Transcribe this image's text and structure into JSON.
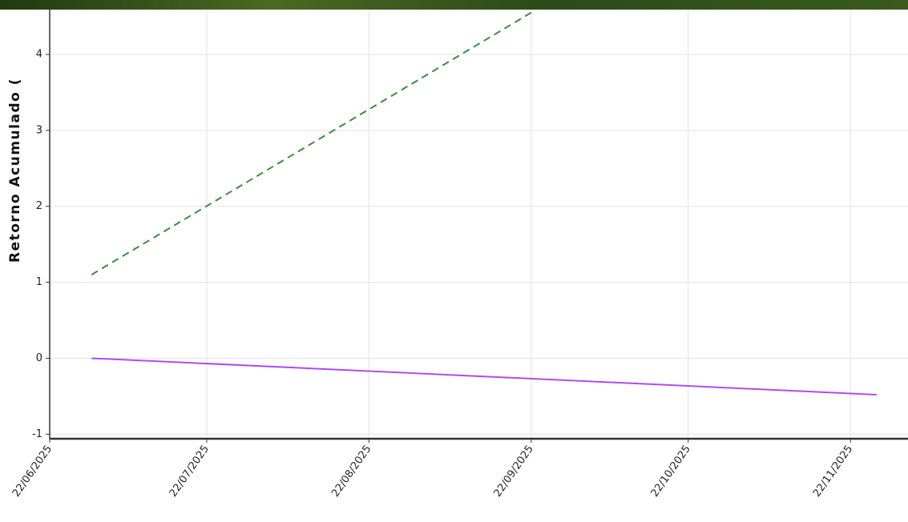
{
  "chart_data": {
    "type": "line",
    "y_label": "Retorno Acumulado (",
    "x": [
      "30/06/2025",
      "22/09/2025"
    ],
    "series": [
      {
        "color": "#3f8a3f",
        "dash": true,
        "x": [
          "30/06/2025",
          "22/09/2025"
        ],
        "values": [
          1.1,
          4.55
        ]
      },
      {
        "color": "#b04bf0",
        "dash": false,
        "x": [
          "30/06/2025",
          "27/11/2025"
        ],
        "values": [
          0,
          -0.48
        ]
      }
    ],
    "xlim": [
      "22/06/2025",
      "03/12/2025"
    ],
    "xticks": [
      "22/06/2025",
      "22/07/2025",
      "22/08/2025",
      "22/09/2025",
      "22/10/2025",
      "22/11/2025"
    ],
    "ylim": [
      -1.06,
      4.59
    ],
    "yticks": [
      -1,
      0,
      1,
      2,
      3,
      4
    ],
    "grid": true
  }
}
